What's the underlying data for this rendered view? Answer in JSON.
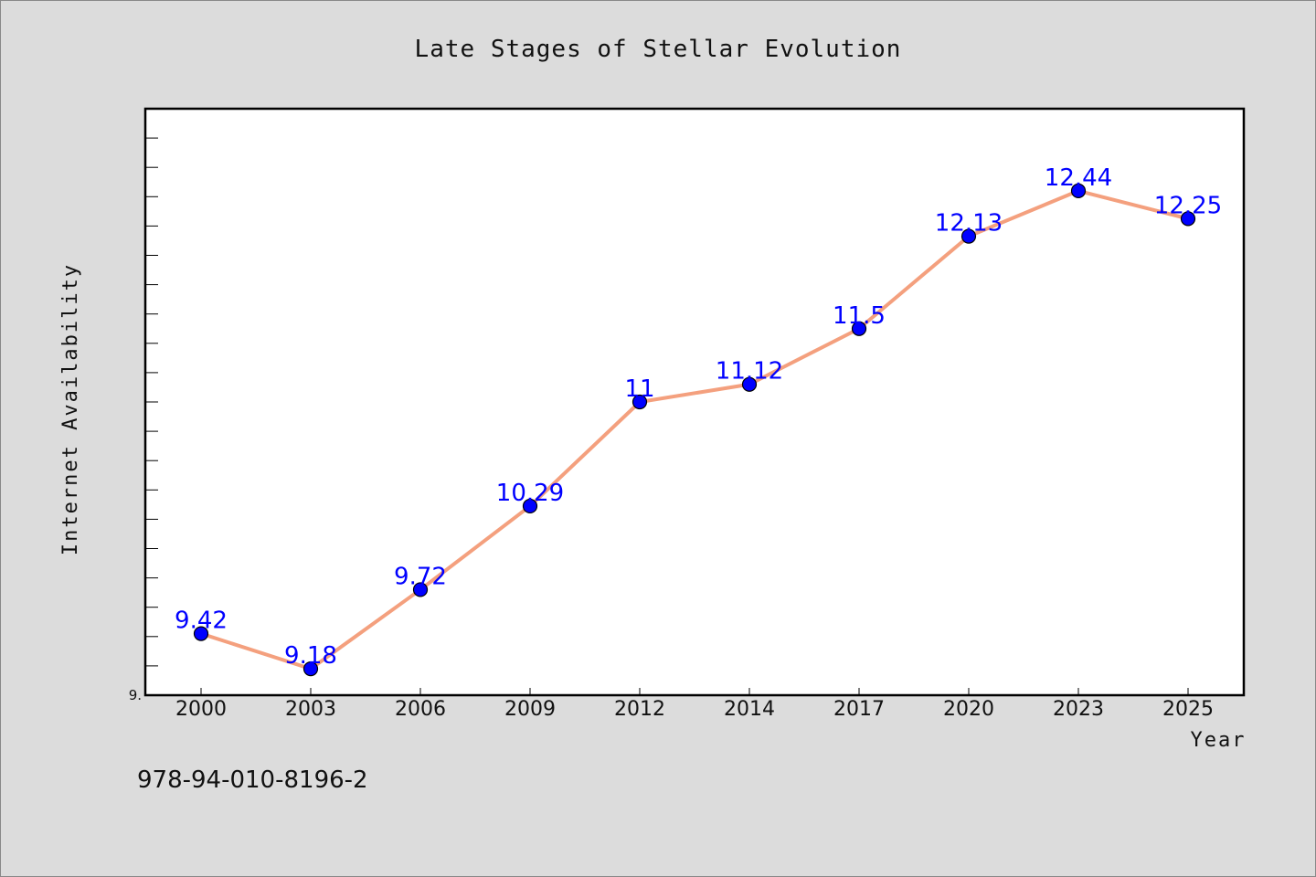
{
  "chart_data": {
    "type": "line",
    "title": "Late Stages of Stellar Evolution",
    "xlabel": "Year",
    "ylabel": "Internet Availability",
    "categories": [
      "2000",
      "2003",
      "2006",
      "2009",
      "2012",
      "2014",
      "2017",
      "2020",
      "2023",
      "2025"
    ],
    "series": [
      {
        "values": [
          9.42,
          9.18,
          9.72,
          10.29,
          11,
          11.12,
          11.5,
          12.13,
          12.44,
          12.25
        ],
        "data_labels": [
          "9.42",
          "9.18",
          "9.72",
          "10.29",
          "11",
          "11.12",
          "11.5",
          "12.13",
          "12.44",
          "12.25"
        ]
      }
    ],
    "ylim": [
      9.0,
      13.0
    ],
    "y_tick_labels": [
      "9."
    ],
    "grid": false,
    "legend": "none",
    "colors": {
      "line": "#f4a07e",
      "marker": "#0000ff",
      "data_label": "#0000ff",
      "background": "#dcdcdc",
      "plot_area": "#ffffff"
    }
  },
  "footer_text": "978-94-010-8196-2"
}
